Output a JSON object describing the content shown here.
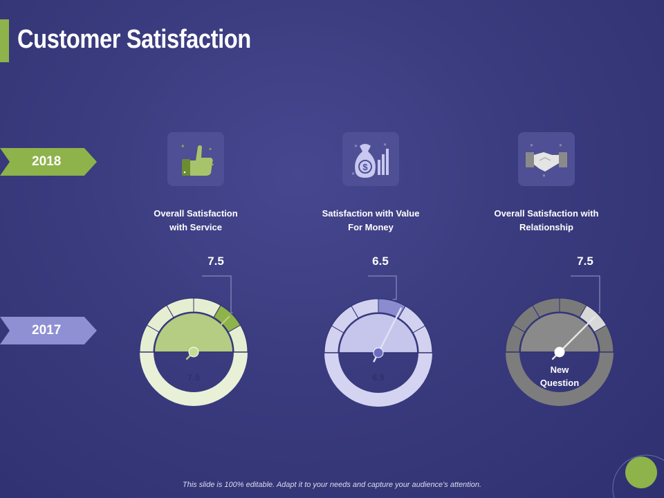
{
  "slide": {
    "title": "Customer Satisfaction",
    "footer": "This slide is 100% editable. Adapt it to your needs and capture your audience's attention."
  },
  "years": {
    "top": "2018",
    "bottom": "2017"
  },
  "colors": {
    "background": "#3a3b7e",
    "accent_green": "#8db34a",
    "accent_purple": "#8f8fd3",
    "gray": "#808080"
  },
  "metrics": [
    {
      "label_line1": "Overall Satisfaction",
      "label_line2": "with Service",
      "value_2018": "7.5",
      "value_2017": "7.5",
      "center_line2": "",
      "icon": "thumbs-up-icon",
      "level_2018": 7.5,
      "level_2017": 7.5,
      "scale_max": 10
    },
    {
      "label_line1": "Satisfaction with Value",
      "label_line2": "For Money",
      "value_2018": "6.5",
      "value_2017": "6.5",
      "center_line2": "",
      "icon": "money-bag-chart-icon",
      "level_2018": 6.5,
      "level_2017": 6.5,
      "scale_max": 10
    },
    {
      "label_line1": "Overall Satisfaction with",
      "label_line2": "Relationship",
      "value_2018": "7.5",
      "value_2017": "New",
      "center_line2": "Question",
      "icon": "handshake-icon",
      "level_2018": 7.5,
      "level_2017": null,
      "scale_max": 10
    }
  ]
}
